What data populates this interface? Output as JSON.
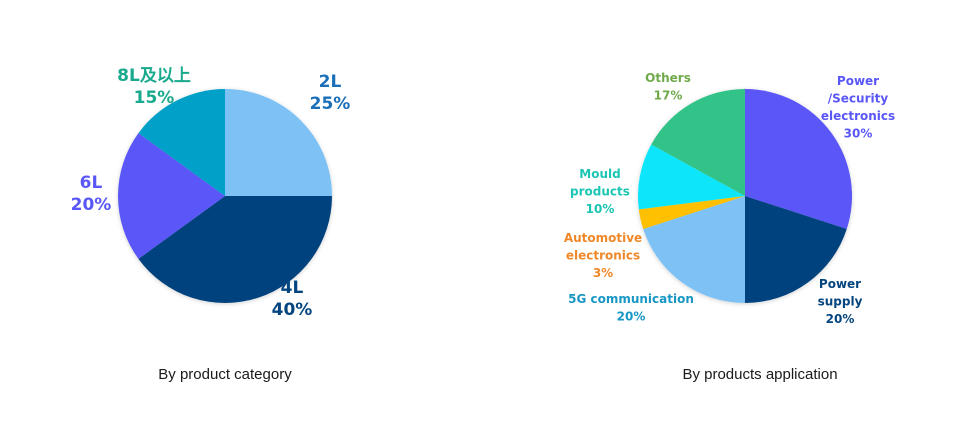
{
  "chart_data": [
    {
      "type": "pie",
      "title": "By product category",
      "slices": [
        {
          "label": "2L",
          "value": 25,
          "value_text": "25%",
          "color": "#7dc1f5",
          "label_color": "#1a6fb8"
        },
        {
          "label": "4L",
          "value": 40,
          "value_text": "40%",
          "color": "#03427e",
          "label_color": "#05457f"
        },
        {
          "label": "6L",
          "value": 20,
          "value_text": "20%",
          "color": "#5a57f7",
          "label_color": "#5a57f7"
        },
        {
          "label": "8L及以上",
          "value": 15,
          "value_text": "15%",
          "color": "#02a0c8",
          "label_color": "#19a98c"
        }
      ]
    },
    {
      "type": "pie",
      "title": "By products application",
      "slices": [
        {
          "label": "Power /Security electronics",
          "label_lines": [
            "Power",
            "/Security",
            "electronics"
          ],
          "value": 30,
          "value_text": "30%",
          "color": "#5a57f7",
          "label_color": "#5a57f7"
        },
        {
          "label": "Power supply",
          "label_lines": [
            "Power",
            "supply"
          ],
          "value": 20,
          "value_text": "20%",
          "color": "#03427e",
          "label_color": "#05457f"
        },
        {
          "label": "5G communication",
          "label_lines": [
            "5G communication"
          ],
          "value": 20,
          "value_text": "20%",
          "color": "#7dc1f5",
          "label_color": "#1896c4"
        },
        {
          "label": "Automotive electronics",
          "label_lines": [
            "Automotive",
            "electronics"
          ],
          "value": 3,
          "value_text": "3%",
          "color": "#fec000",
          "label_color": "#f0882a"
        },
        {
          "label": "Mould products",
          "label_lines": [
            "Mould",
            "products"
          ],
          "value": 10,
          "value_text": "10%",
          "color": "#10e6fa",
          "label_color": "#1cc6b4"
        },
        {
          "label": "Others",
          "label_lines": [
            "Others"
          ],
          "value": 17,
          "value_text": "17%",
          "color": "#33c388",
          "label_color": "#6faa4a"
        }
      ]
    }
  ]
}
